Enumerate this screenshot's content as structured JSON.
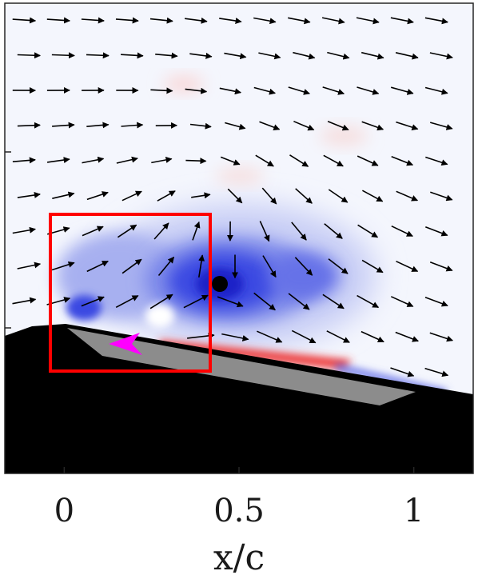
{
  "chart_data": {
    "type": "vector-field",
    "xlabel": "x/c",
    "xticks": [
      {
        "value": 0,
        "label": "0"
      },
      {
        "value": 0.5,
        "label": "0.5"
      },
      {
        "value": 1,
        "label": "1"
      }
    ],
    "xlim": [
      -0.17,
      1.17
    ],
    "colormap": {
      "negative": "#1f2ee0",
      "zero": "#ffffff",
      "positive": "#e01a1a"
    },
    "vortex_core": {
      "x": 0.44,
      "y": 0.12
    },
    "highlight_box": {
      "x_range": [
        -0.04,
        0.42
      ],
      "color": "#ff0000"
    },
    "flow_direction_marker": {
      "x": 0.17,
      "color": "#ff00ff"
    },
    "background_body_color": "#000000",
    "plate_color": "#8c8c8c"
  }
}
